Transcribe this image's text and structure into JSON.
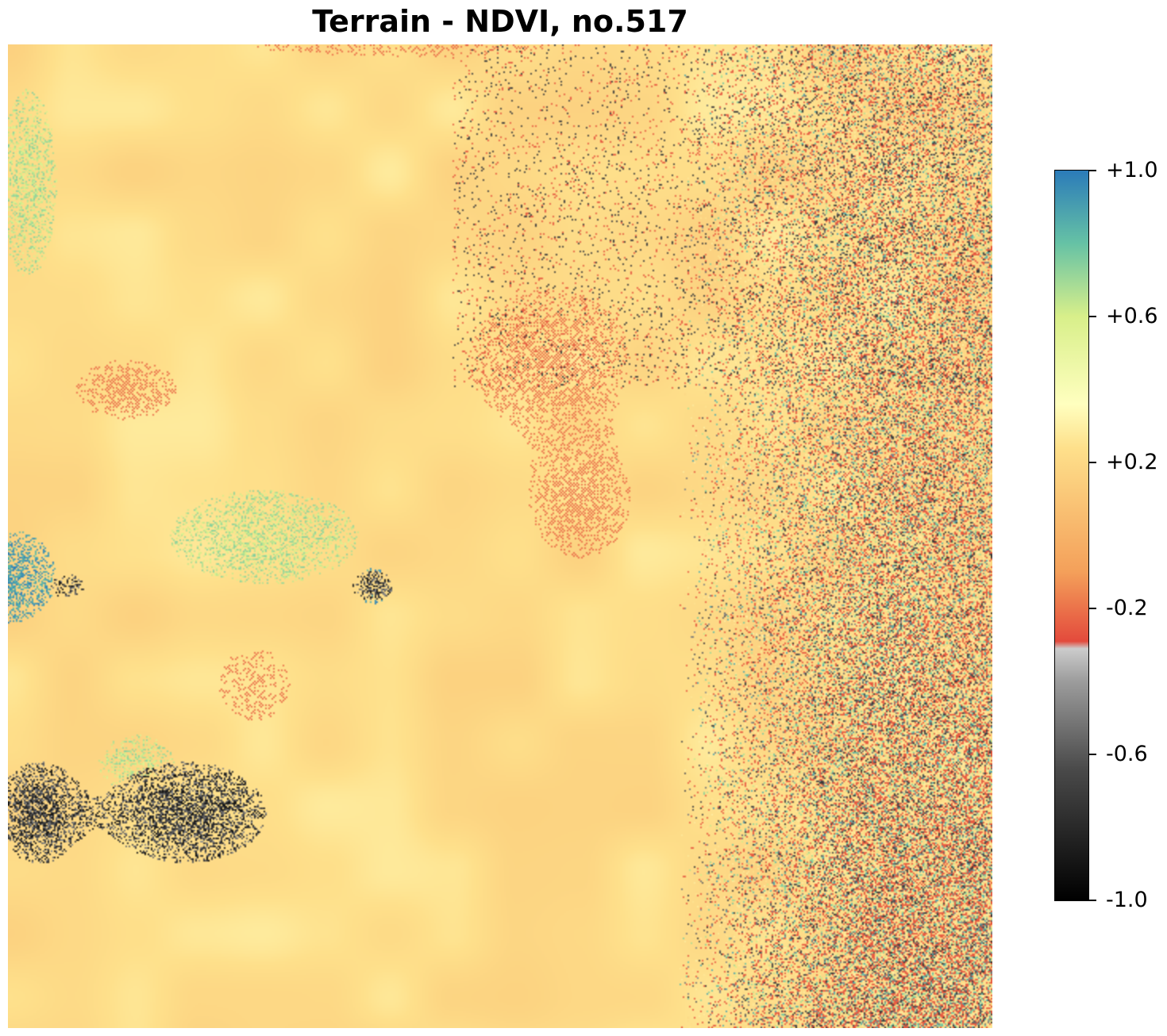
{
  "title": "Terrain - NDVI, no.517",
  "map": {
    "variable": "NDVI",
    "value_range": [
      -1.0,
      1.0
    ],
    "dominant_values": [
      "+0.2",
      "-0.2",
      "+0.6"
    ],
    "colormap": {
      "colors": [
        "#000000",
        "#4a4a4a",
        "#9c9c9c",
        "#cccccc",
        "#e34a3c",
        "#f4a05a",
        "#fee08b",
        "#ffffbf",
        "#d8ef8a",
        "#66c2a5",
        "#2b7bb9"
      ]
    }
  },
  "colorbar": {
    "min": -1.0,
    "max": 1.0,
    "ticks": [
      {
        "value": 1.0,
        "label": "+1.0"
      },
      {
        "value": 0.6,
        "label": "+0.6"
      },
      {
        "value": 0.2,
        "label": "+0.2"
      },
      {
        "value": -0.2,
        "label": "-0.2"
      },
      {
        "value": -0.6,
        "label": "-0.6"
      },
      {
        "value": -1.0,
        "label": "-1.0"
      }
    ]
  }
}
